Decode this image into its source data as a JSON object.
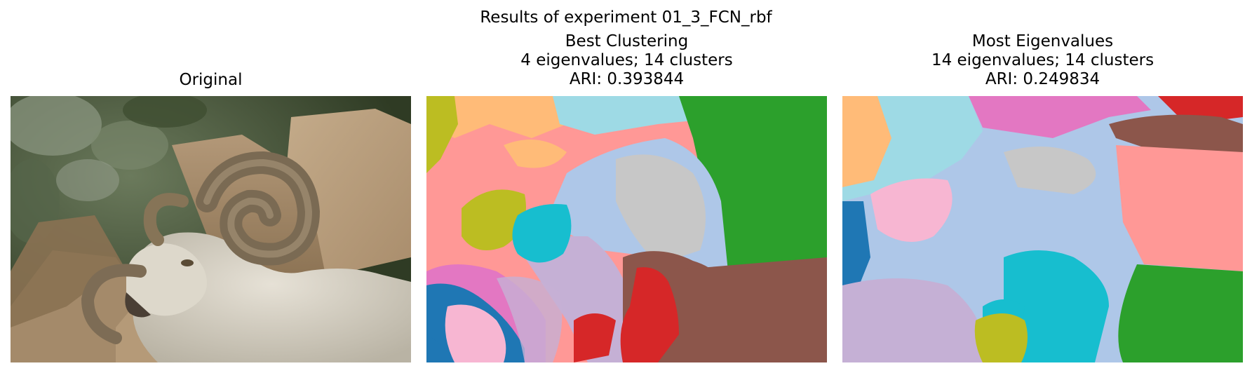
{
  "figure": {
    "suptitle": "Results of experiment 01_3_FCN_rbf"
  },
  "panels": [
    {
      "id": "original",
      "title_lines": [
        "Original"
      ],
      "image": "photograph of a bighorn ram with large curled horns in front of tan rocks and dark green foliage"
    },
    {
      "id": "best",
      "title_lines": [
        "Best Clustering",
        "4 eigenvalues; 14 clusters",
        "ARI: 0.393844"
      ],
      "image": "segmentation map with 14 colored clusters"
    },
    {
      "id": "most",
      "title_lines": [
        "Most Eigenvalues",
        "14 eigenvalues; 14 clusters",
        "ARI: 0.249834"
      ],
      "image": "segmentation map with 14 colored clusters"
    }
  ],
  "palette": {
    "light_blue": "#aec7e8",
    "blue": "#1f77b4",
    "orange": "#ffbb78",
    "green": "#2ca02c",
    "red": "#d62728",
    "salmon": "#ff9896",
    "lavender": "#c5b0d5",
    "brown": "#8c564b",
    "pink": "#e377c2",
    "light_pink": "#f7b6d2",
    "gray": "#c7c7c7",
    "olive": "#bcbd22",
    "cyan": "#17becf",
    "light_cyan": "#9edae5"
  }
}
